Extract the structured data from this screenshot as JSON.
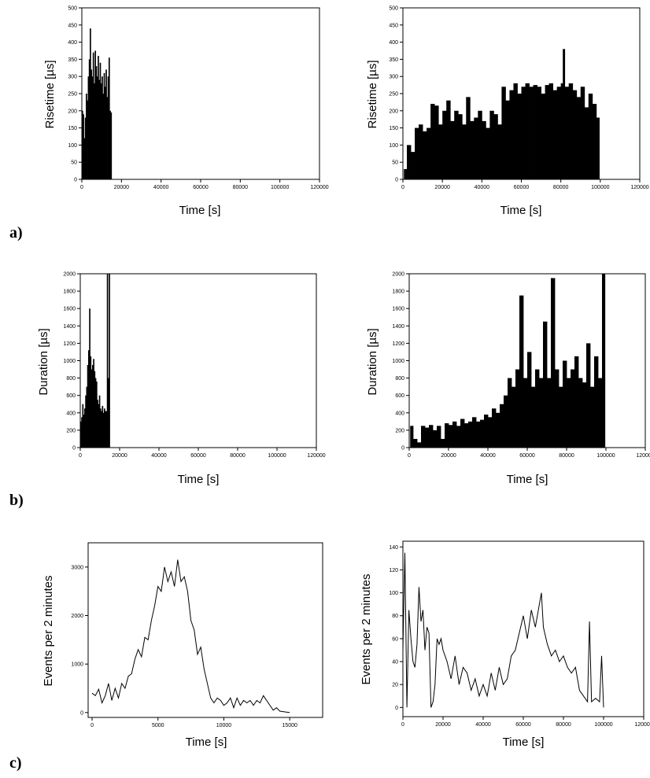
{
  "panel_labels": {
    "a": "a)",
    "b": "b)",
    "c": "c)"
  },
  "chart_data": [
    {
      "id": "a_left",
      "type": "bar",
      "title": "",
      "xlabel": "Time  [s]",
      "ylabel": "Risetime [µs]",
      "xlim": [
        0,
        120000
      ],
      "ylim": [
        0,
        500
      ],
      "xticks": [
        0,
        20000,
        40000,
        60000,
        80000,
        100000,
        120000
      ],
      "yticks": [
        0,
        50,
        100,
        150,
        200,
        250,
        300,
        350,
        400,
        450,
        500
      ],
      "x": [
        0,
        500,
        1000,
        1500,
        2000,
        2500,
        3000,
        3500,
        4000,
        4500,
        5000,
        5500,
        6000,
        6500,
        7000,
        7500,
        8000,
        8500,
        9000,
        9500,
        10000,
        10500,
        11000,
        11500,
        12000,
        12500,
        13000,
        13500,
        14000,
        14500
      ],
      "y": [
        200,
        190,
        120,
        180,
        250,
        230,
        300,
        350,
        440,
        320,
        300,
        370,
        280,
        375,
        330,
        300,
        360,
        290,
        340,
        280,
        300,
        250,
        310,
        270,
        320,
        240,
        300,
        355,
        200,
        195
      ],
      "grid": false
    },
    {
      "id": "a_right",
      "type": "bar",
      "title": "",
      "xlabel": "Time [s]",
      "ylabel": "Risetime [µs]",
      "xlim": [
        0,
        120000
      ],
      "ylim": [
        0,
        500
      ],
      "xticks": [
        0,
        20000,
        40000,
        60000,
        80000,
        100000,
        120000
      ],
      "yticks": [
        0,
        50,
        100,
        150,
        200,
        250,
        300,
        350,
        400,
        450,
        500
      ],
      "x": [
        500,
        2000,
        4000,
        6000,
        8000,
        10000,
        12000,
        14000,
        16000,
        18000,
        20000,
        22000,
        24000,
        26000,
        28000,
        30000,
        32000,
        34000,
        36000,
        38000,
        40000,
        42000,
        44000,
        46000,
        48000,
        50000,
        52000,
        54000,
        56000,
        58000,
        60000,
        62000,
        64000,
        66000,
        68000,
        70000,
        72000,
        74000,
        76000,
        78000,
        80000,
        81000,
        82000,
        84000,
        86000,
        88000,
        90000,
        92000,
        94000,
        96000,
        98000
      ],
      "y": [
        30,
        100,
        80,
        150,
        160,
        140,
        150,
        220,
        215,
        160,
        200,
        230,
        170,
        200,
        190,
        160,
        240,
        170,
        180,
        200,
        170,
        150,
        200,
        190,
        160,
        270,
        230,
        260,
        280,
        250,
        270,
        280,
        270,
        275,
        270,
        250,
        275,
        280,
        260,
        270,
        280,
        380,
        270,
        280,
        260,
        240,
        270,
        210,
        250,
        220,
        180
      ],
      "grid": false
    },
    {
      "id": "b_left",
      "type": "bar",
      "title": "",
      "xlabel": "Time  [s]",
      "ylabel": "Duration  [µs]",
      "xlim": [
        0,
        120000
      ],
      "ylim": [
        0,
        2000
      ],
      "xticks": [
        0,
        20000,
        40000,
        60000,
        80000,
        100000,
        120000
      ],
      "yticks": [
        0,
        200,
        400,
        600,
        800,
        1000,
        1200,
        1400,
        1600,
        1800,
        2000
      ],
      "x": [
        0,
        500,
        1000,
        1500,
        2000,
        2500,
        3000,
        3500,
        4000,
        4500,
        5000,
        5500,
        6000,
        6500,
        7000,
        7500,
        8000,
        8500,
        9000,
        9500,
        10000,
        10500,
        11000,
        11500,
        12000,
        12500,
        13000,
        13500,
        14000,
        14500
      ],
      "y": [
        300,
        350,
        500,
        380,
        450,
        600,
        700,
        950,
        1120,
        1600,
        1050,
        900,
        950,
        1020,
        880,
        800,
        760,
        550,
        500,
        600,
        450,
        420,
        480,
        400,
        450,
        420,
        420,
        2000,
        800,
        2000
      ],
      "grid": false
    },
    {
      "id": "b_right",
      "type": "bar",
      "title": "",
      "xlabel": "Time  [s]",
      "ylabel": "Duration  [µs]",
      "xlim": [
        0,
        120000
      ],
      "ylim": [
        0,
        2000
      ],
      "xticks": [
        0,
        20000,
        40000,
        60000,
        80000,
        100000,
        120000
      ],
      "yticks": [
        0,
        200,
        400,
        600,
        800,
        1000,
        1200,
        1400,
        1600,
        1800,
        2000
      ],
      "x": [
        500,
        2000,
        4000,
        6000,
        8000,
        10000,
        12000,
        14000,
        16000,
        18000,
        20000,
        22000,
        24000,
        26000,
        28000,
        30000,
        32000,
        34000,
        36000,
        38000,
        40000,
        42000,
        44000,
        46000,
        48000,
        50000,
        52000,
        54000,
        56000,
        58000,
        60000,
        62000,
        64000,
        66000,
        68000,
        70000,
        72000,
        74000,
        76000,
        78000,
        80000,
        82000,
        84000,
        86000,
        88000,
        90000,
        92000,
        94000,
        96000,
        98000
      ],
      "y": [
        250,
        100,
        60,
        250,
        230,
        260,
        200,
        250,
        100,
        280,
        260,
        300,
        250,
        330,
        280,
        300,
        350,
        300,
        320,
        380,
        350,
        450,
        400,
        500,
        600,
        800,
        700,
        900,
        1750,
        800,
        1100,
        700,
        900,
        800,
        1450,
        800,
        1950,
        900,
        700,
        1000,
        800,
        900,
        1050,
        800,
        750,
        1200,
        700,
        1050,
        800,
        2000
      ],
      "grid": false
    },
    {
      "id": "c_left",
      "type": "line",
      "title": "",
      "xlabel": "Time [s]",
      "ylabel": "Events per 2 minutes",
      "xlim": [
        -300,
        17500
      ],
      "ylim": [
        -100,
        3500
      ],
      "xticks": [
        0,
        5000,
        10000,
        15000
      ],
      "yticks": [
        0,
        1000,
        2000,
        3000
      ],
      "x": [
        0,
        250,
        500,
        750,
        1000,
        1250,
        1500,
        1750,
        2000,
        2250,
        2500,
        2750,
        3000,
        3250,
        3500,
        3750,
        4000,
        4250,
        4500,
        4750,
        5000,
        5250,
        5500,
        5750,
        6000,
        6250,
        6500,
        6750,
        7000,
        7250,
        7500,
        7750,
        8000,
        8250,
        8500,
        8750,
        9000,
        9250,
        9500,
        9750,
        10000,
        10250,
        10500,
        10750,
        11000,
        11250,
        11500,
        11750,
        12000,
        12250,
        12500,
        12750,
        13000,
        13250,
        13500,
        13750,
        14000,
        14250,
        14500,
        14750,
        15000
      ],
      "y": [
        400,
        350,
        480,
        200,
        350,
        600,
        250,
        500,
        300,
        600,
        500,
        750,
        800,
        1100,
        1300,
        1150,
        1550,
        1500,
        1900,
        2200,
        2600,
        2500,
        3000,
        2700,
        2900,
        2600,
        3150,
        2700,
        2800,
        2500,
        1900,
        1700,
        1200,
        1350,
        900,
        600,
        300,
        200,
        300,
        250,
        150,
        200,
        300,
        100,
        300,
        150,
        250,
        200,
        250,
        150,
        250,
        200,
        350,
        250,
        150,
        50,
        100,
        30,
        20,
        10,
        0
      ],
      "grid": false
    },
    {
      "id": "c_right",
      "type": "line",
      "title": "",
      "xlabel": "Time  [s]",
      "ylabel": "Events per 2 minutes",
      "xlim": [
        0,
        120000
      ],
      "ylim": [
        -8,
        145
      ],
      "xticks": [
        0,
        20000,
        40000,
        60000,
        80000,
        100000,
        120000
      ],
      "yticks": [
        0,
        20,
        40,
        60,
        80,
        100,
        120,
        140
      ],
      "x": [
        0,
        1000,
        2000,
        3000,
        4000,
        5000,
        6000,
        7000,
        8000,
        9000,
        10000,
        11000,
        12000,
        13000,
        14000,
        15000,
        16000,
        17000,
        18000,
        19000,
        20000,
        22000,
        24000,
        26000,
        28000,
        30000,
        32000,
        34000,
        36000,
        38000,
        40000,
        42000,
        44000,
        46000,
        48000,
        50000,
        52000,
        54000,
        56000,
        58000,
        60000,
        62000,
        64000,
        66000,
        68000,
        69000,
        70000,
        72000,
        74000,
        76000,
        78000,
        80000,
        82000,
        84000,
        86000,
        88000,
        90000,
        92000,
        93000,
        94000,
        96000,
        98000,
        99000,
        100000
      ],
      "y": [
        50,
        135,
        0,
        85,
        60,
        40,
        35,
        55,
        105,
        75,
        85,
        50,
        70,
        65,
        0,
        5,
        20,
        60,
        55,
        60,
        50,
        40,
        25,
        45,
        20,
        35,
        30,
        15,
        25,
        10,
        20,
        10,
        30,
        15,
        35,
        20,
        25,
        45,
        50,
        65,
        80,
        60,
        85,
        70,
        90,
        100,
        70,
        55,
        45,
        50,
        40,
        45,
        35,
        30,
        35,
        15,
        10,
        5,
        75,
        5,
        8,
        5,
        45,
        0
      ],
      "grid": false
    }
  ]
}
